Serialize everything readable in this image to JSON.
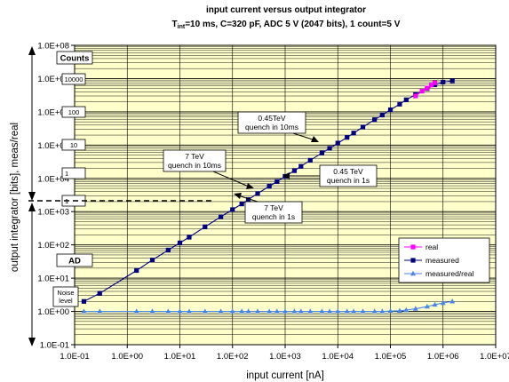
{
  "chart_data": {
    "type": "scatter",
    "title": "input current versus output integrator",
    "subtitle": {
      "prefix": "T",
      "sub": "int",
      "rest": "=10 ms, C=320 pF, ADC 5 V (2047 bits), 1 count=5 V"
    },
    "xlabel": "input current [nA]",
    "ylabel": "output integrator [bits], meas/real",
    "xscale": "log",
    "yscale": "log",
    "xlim": [
      0.1,
      10000000
    ],
    "ylim": [
      0.1,
      100000000
    ],
    "x_tick_labels": [
      "1.0E-01",
      "1.0E+00",
      "1.0E+01",
      "1.0E+02",
      "1.0E+03",
      "1.0E+04",
      "1.0E+05",
      "1.0E+06",
      "1.0E+07"
    ],
    "y_tick_labels": [
      "1.0E-01",
      "1.0E+00",
      "1.0E+01",
      "1.0E+02",
      "1.0E+03",
      "1.0E+04",
      "1.0E+05",
      "1.0E+06",
      "1.0E+07",
      "1.0E+08"
    ],
    "grid": true,
    "background_color": "#ffffcc",
    "legend": {
      "position": "right",
      "entries": [
        "real",
        "measured",
        "measured/real"
      ]
    },
    "series": [
      {
        "name": "real",
        "color": "#ff00ff",
        "marker": "square",
        "x": [
          300000,
          400000,
          500000,
          600000,
          700000
        ],
        "y": [
          3000000,
          4200000,
          5200000,
          6400000,
          7500000
        ]
      },
      {
        "name": "measured",
        "color": "#000080",
        "marker": "square",
        "x": [
          0.15,
          0.3,
          1.5,
          3,
          6,
          10,
          15,
          30,
          60,
          100,
          150,
          200,
          300,
          500,
          700,
          1000,
          1500,
          2000,
          3000,
          5000,
          7000,
          10000,
          15000,
          20000,
          30000,
          50000,
          70000,
          100000,
          150000,
          200000,
          300000,
          500000,
          700000,
          1000000,
          1500000
        ],
        "y": [
          2,
          3.5,
          17,
          35,
          70,
          115,
          170,
          350,
          700,
          1150,
          1700,
          2300,
          3500,
          5800,
          8000,
          11500,
          17000,
          23000,
          35000,
          58000,
          80000,
          115000,
          170000,
          230000,
          350000,
          580000,
          800000,
          1150000,
          1700000,
          2300000,
          3300000,
          5000000,
          6500000,
          7800000,
          8500000
        ]
      },
      {
        "name": "measured/real",
        "color": "#4a86e8",
        "marker": "triangle",
        "x": [
          0.15,
          0.3,
          1.5,
          3,
          6,
          10,
          15,
          30,
          60,
          100,
          150,
          200,
          300,
          500,
          700,
          1000,
          1500,
          2000,
          3000,
          5000,
          7000,
          10000,
          15000,
          20000,
          30000,
          50000,
          70000,
          100000,
          150000,
          200000,
          300000,
          500000,
          700000,
          1000000,
          1500000
        ],
        "y": [
          1,
          1,
          1,
          1,
          1,
          1,
          1,
          1,
          1,
          1,
          1,
          1,
          1,
          1,
          1,
          1,
          1,
          1,
          1,
          1,
          1,
          1,
          1,
          1,
          1,
          1,
          1,
          1.02,
          1.05,
          1.1,
          1.2,
          1.4,
          1.6,
          1.8,
          2
        ]
      }
    ],
    "counts_scale": {
      "title": "Counts",
      "labels": [
        "10000",
        "100",
        "10",
        "1",
        "1"
      ],
      "ad_label": "AD",
      "noise_label": [
        "Noise",
        "level"
      ]
    },
    "annotations": [
      {
        "lines": [
          "0.45TeV",
          "quench in 10ms"
        ]
      },
      {
        "lines": [
          "7 TeV",
          "quench in 10ms"
        ]
      },
      {
        "lines": [
          "0.45 TeV",
          "quench in 1s"
        ]
      },
      {
        "lines": [
          "7 TeV",
          "quench in 1s"
        ]
      }
    ]
  }
}
